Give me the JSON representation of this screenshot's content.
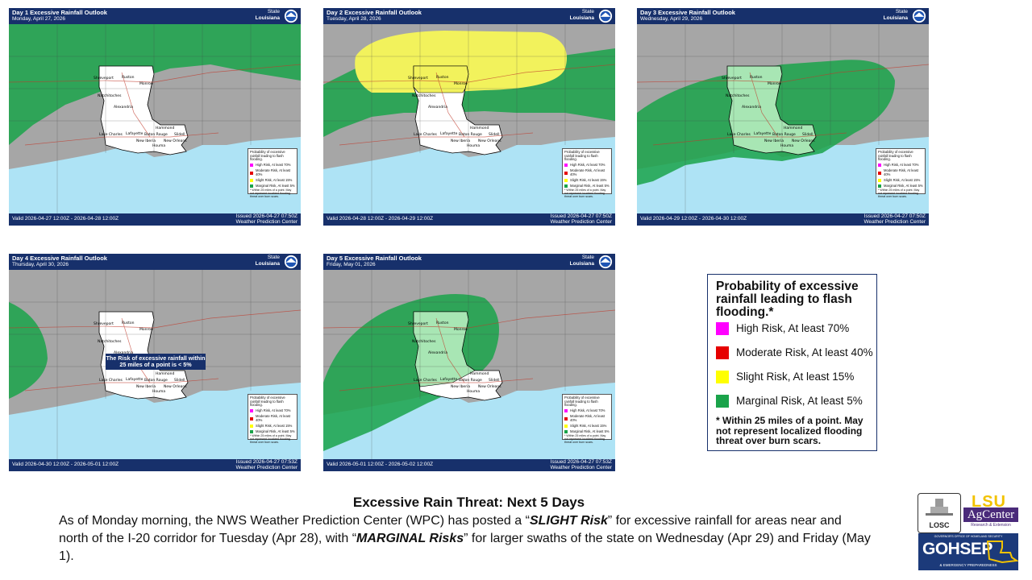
{
  "panels": [
    {
      "id": "p1",
      "title": "Day 1 Excessive Rainfall Outlook",
      "date": "Monday, April 27, 2026",
      "state_label": "State",
      "state": "Louisiana",
      "valid": "Valid 2026-04-27 12:00Z - 2026-04-28 12:00Z",
      "issued": "Issued 2026-04-27 07:50Z",
      "center": "Weather Prediction Center"
    },
    {
      "id": "p2",
      "title": "Day 2 Excessive Rainfall Outlook",
      "date": "Tuesday, April 28, 2026",
      "state_label": "State",
      "state": "Louisiana",
      "valid": "Valid 2026-04-28 12:00Z - 2026-04-29 12:00Z",
      "issued": "Issued 2026-04-27 07:50Z",
      "center": "Weather Prediction Center"
    },
    {
      "id": "p3",
      "title": "Day 3 Excessive Rainfall Outlook",
      "date": "Wednesday, April 29, 2026",
      "state_label": "State",
      "state": "Louisiana",
      "valid": "Valid 2026-04-29 12:00Z - 2026-04-30 12:00Z",
      "issued": "Issued 2026-04-27 07:50Z",
      "center": "Weather Prediction Center"
    },
    {
      "id": "p4",
      "title": "Day 4 Excessive Rainfall Outlook",
      "date": "Thursday, April 30, 2026",
      "state_label": "State",
      "state": "Louisiana",
      "valid": "Valid 2026-04-30 12:00Z - 2026-05-01 12:00Z",
      "issued": "Issued 2026-04-27 07:53Z",
      "center": "Weather Prediction Center",
      "note": "The Risk of excessive rainfall within 25 miles of a point is < 5%"
    },
    {
      "id": "p5",
      "title": "Day 5 Excessive Rainfall Outlook",
      "date": "Friday, May 01, 2026",
      "state_label": "State",
      "state": "Louisiana",
      "valid": "Valid 2026-05-01 12:00Z - 2026-05-02 12:00Z",
      "issued": "Issued 2026-04-27 07:53Z",
      "center": "Weather Prediction Center"
    }
  ],
  "cities": [
    "Shreveport",
    "Ruston",
    "Monroe",
    "Natchitoches",
    "Alexandria",
    "Lake Charles",
    "Lafayette",
    "Hammond",
    "Baton Rouge",
    "Slidell",
    "New Orleans",
    "New Iberia",
    "Houma"
  ],
  "mini_legend": {
    "title": "Probability of excessive rainfall leading to flash flooding.",
    "items": [
      "High Risk, At least 70%",
      "Moderate Risk, At least 40%",
      "Slight Risk, At least 15%",
      "Marginal Risk, At least 5%"
    ],
    "footnote": "* Within 25 miles of a point. May not represent localized flooding threat over burn scars."
  },
  "legend": {
    "title": "Probability of excessive rainfall leading to flash flooding.*",
    "items": [
      {
        "label": "High Risk, At least 70%",
        "color": "#ff00ff"
      },
      {
        "label": "Moderate Risk, At least 40%",
        "color": "#e60000"
      },
      {
        "label": "Slight Risk, At least 15%",
        "color": "#ffff00"
      },
      {
        "label": "Marginal Risk, At least 5%",
        "color": "#1aa34a"
      }
    ],
    "footnote": "* Within 25 miles of a point. May not represent localized flooding threat over burn scars."
  },
  "caption": {
    "title": "Excessive Rain Threat: Next 5 Days",
    "p1": "As of Monday morning, the NWS Weather Prediction Center (WPC) has posted a “",
    "em1": "SLIGHT Risk",
    "p2": "” for excessive rainfall for areas near and north of the I-20 corridor for Tuesday (Apr 28), with “",
    "em2": "MARGINAL Risks",
    "p3": "” for larger swaths of the state on Wednesday (Apr 29) and Friday (May 1)."
  },
  "logos": {
    "losc": "LOSC",
    "lsu": "LSU",
    "agcenter": "AgCenter",
    "agcenter_sub": "Research & Extension",
    "gohsep": "GOHSEP",
    "gohsep_top": "GOVERNOR'S OFFICE OF HOMELAND SECURITY",
    "gohsep_sub": "& EMERGENCY PREPAREDNESS"
  },
  "colors": {
    "header": "#17306b",
    "land": "#a6a6a6",
    "water": "#aee3f5",
    "state": "#ffffff",
    "marginal": "#1aa34a",
    "slight": "#f2f25c"
  }
}
